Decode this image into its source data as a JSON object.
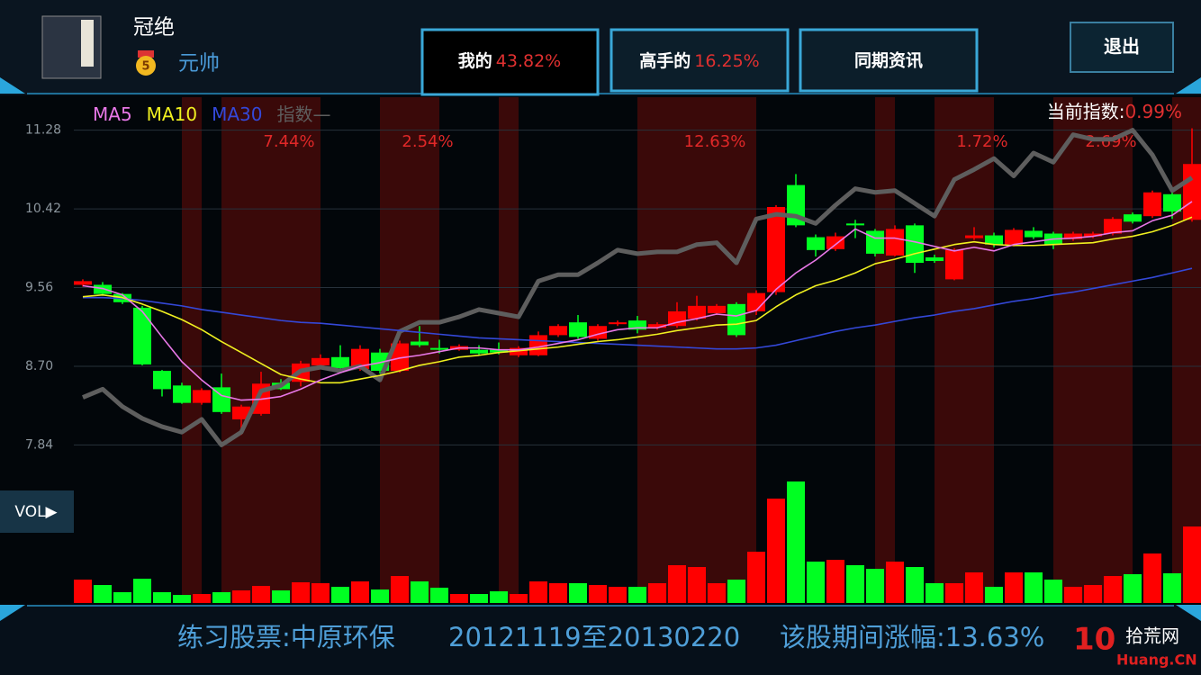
{
  "header": {
    "user_name": "冠绝",
    "rank_badge": "5",
    "rank_title": "元帅",
    "tabs": [
      {
        "label": "我的",
        "value": "43.82%"
      },
      {
        "label": "高手的",
        "value": "16.25%"
      },
      {
        "label": "同期资讯"
      }
    ],
    "exit_button": "退出"
  },
  "chart_data": {
    "type": "candlestick",
    "current_index_label": "当前指数:",
    "current_index_value": "0.99%",
    "ylim": [
      7.5,
      11.64
    ],
    "yticks": [
      11.28,
      10.42,
      9.56,
      {
        "value": 8.7,
        "label": "8.70"
      },
      7.84
    ],
    "grid": true,
    "up_color": "#ff0000",
    "down_color": "#00ff22",
    "open": [
      9.59,
      9.59,
      9.49,
      9.34,
      8.65,
      8.49,
      8.3,
      8.47,
      8.12,
      8.18,
      8.52,
      8.53,
      8.71,
      8.8,
      8.67,
      8.85,
      8.65,
      8.97,
      8.9,
      8.88,
      8.88,
      8.88,
      8.82,
      8.82,
      9.04,
      9.18,
      9.0,
      9.16,
      9.2,
      9.12,
      9.14,
      9.22,
      9.28,
      9.38,
      9.3,
      9.51,
      10.68,
      10.11,
      9.98,
      10.26,
      10.18,
      9.91,
      10.24,
      9.89,
      9.65,
      10.1,
      10.13,
      10.03,
      10.18,
      10.15,
      10.09,
      10.12,
      10.15,
      10.36,
      10.34,
      10.58,
      10.3
    ],
    "high": [
      9.65,
      9.62,
      9.5,
      9.36,
      8.66,
      8.52,
      8.46,
      8.62,
      8.28,
      8.64,
      8.56,
      8.76,
      8.83,
      8.93,
      8.93,
      8.89,
      8.98,
      9.14,
      8.99,
      8.94,
      8.93,
      8.96,
      8.92,
      9.08,
      9.16,
      9.26,
      9.16,
      9.2,
      9.25,
      9.18,
      9.4,
      9.47,
      9.38,
      9.4,
      9.53,
      10.46,
      10.8,
      10.14,
      10.16,
      10.3,
      10.2,
      10.24,
      10.26,
      9.92,
      9.99,
      10.22,
      10.16,
      10.21,
      10.22,
      10.17,
      10.17,
      10.17,
      10.33,
      10.38,
      10.62,
      10.6,
      11.3
    ],
    "low": [
      9.57,
      9.47,
      9.38,
      8.71,
      8.37,
      8.29,
      8.28,
      8.18,
      7.95,
      8.16,
      8.44,
      8.48,
      8.68,
      8.66,
      8.65,
      8.62,
      8.63,
      8.91,
      8.84,
      8.87,
      8.82,
      8.83,
      8.8,
      8.81,
      9.02,
      9.0,
      8.98,
      9.14,
      9.06,
      9.1,
      9.12,
      9.2,
      9.26,
      9.02,
      9.26,
      9.48,
      10.22,
      9.9,
      9.96,
      10.1,
      9.9,
      9.9,
      9.72,
      9.83,
      9.64,
      10.08,
      10.0,
      10.01,
      10.09,
      9.98,
      10.07,
      10.1,
      10.13,
      10.26,
      10.32,
      10.31,
      10.28
    ],
    "close": [
      9.63,
      9.49,
      9.4,
      8.72,
      8.45,
      8.3,
      8.44,
      8.2,
      8.26,
      8.51,
      8.45,
      8.73,
      8.79,
      8.68,
      8.89,
      8.65,
      8.95,
      8.93,
      8.88,
      8.92,
      8.84,
      8.85,
      8.9,
      9.04,
      9.14,
      9.02,
      9.14,
      9.18,
      9.1,
      9.16,
      9.3,
      9.36,
      9.36,
      9.04,
      9.5,
      10.44,
      10.24,
      9.97,
      10.12,
      10.24,
      9.93,
      10.2,
      9.83,
      9.85,
      9.97,
      10.13,
      10.03,
      10.19,
      10.11,
      10.03,
      10.15,
      10.15,
      10.31,
      10.28,
      10.6,
      10.39,
      10.91
    ],
    "series": [
      {
        "name": "MA5",
        "color": "#e878e8",
        "values": [
          9.58,
          9.55,
          9.48,
          9.3,
          9.02,
          8.75,
          8.55,
          8.38,
          8.33,
          8.34,
          8.37,
          8.45,
          8.55,
          8.63,
          8.7,
          8.74,
          8.79,
          8.82,
          8.86,
          8.9,
          8.9,
          8.88,
          8.88,
          8.91,
          8.95,
          8.99,
          9.05,
          9.1,
          9.12,
          9.12,
          9.18,
          9.22,
          9.27,
          9.25,
          9.31,
          9.54,
          9.72,
          9.86,
          10.03,
          10.2,
          10.1,
          10.1,
          10.06,
          10.01,
          9.96,
          10.0,
          9.96,
          10.03,
          10.06,
          10.09,
          10.1,
          10.12,
          10.16,
          10.18,
          10.29,
          10.35,
          10.5
        ]
      },
      {
        "name": "MA10",
        "color": "#f0f020",
        "values": [
          9.46,
          9.48,
          9.45,
          9.38,
          9.3,
          9.21,
          9.1,
          8.97,
          8.85,
          8.73,
          8.61,
          8.56,
          8.52,
          8.52,
          8.56,
          8.6,
          8.65,
          8.71,
          8.75,
          8.8,
          8.82,
          8.85,
          8.87,
          8.89,
          8.91,
          8.94,
          8.97,
          8.99,
          9.02,
          9.05,
          9.09,
          9.12,
          9.15,
          9.16,
          9.2,
          9.35,
          9.48,
          9.58,
          9.64,
          9.72,
          9.82,
          9.87,
          9.93,
          9.98,
          10.03,
          10.06,
          10.03,
          10.02,
          10.02,
          10.03,
          10.04,
          10.05,
          10.09,
          10.12,
          10.17,
          10.24,
          10.33
        ]
      },
      {
        "name": "MA30",
        "color": "#3448d8",
        "values": [
          9.45,
          9.45,
          9.44,
          9.42,
          9.39,
          9.36,
          9.32,
          9.29,
          9.26,
          9.23,
          9.2,
          9.18,
          9.17,
          9.15,
          9.13,
          9.11,
          9.09,
          9.07,
          9.05,
          9.03,
          9.01,
          9.0,
          8.99,
          8.98,
          8.97,
          8.96,
          8.95,
          8.94,
          8.93,
          8.92,
          8.91,
          8.9,
          8.89,
          8.89,
          8.9,
          8.93,
          8.98,
          9.03,
          9.08,
          9.12,
          9.15,
          9.19,
          9.23,
          9.26,
          9.3,
          9.33,
          9.37,
          9.41,
          9.44,
          9.48,
          9.51,
          9.55,
          9.59,
          9.63,
          9.67,
          9.72,
          9.77
        ]
      },
      {
        "name": "指数—",
        "color": "#5e5e5e",
        "values": [
          8.36,
          8.45,
          8.26,
          8.13,
          8.04,
          7.98,
          8.12,
          7.84,
          7.98,
          8.43,
          8.49,
          8.65,
          8.69,
          8.65,
          8.7,
          8.55,
          9.08,
          9.18,
          9.18,
          9.24,
          9.32,
          9.28,
          9.24,
          9.63,
          9.7,
          9.7,
          9.83,
          9.97,
          9.93,
          9.95,
          9.95,
          10.03,
          10.05,
          9.83,
          10.31,
          10.36,
          10.34,
          10.26,
          10.46,
          10.64,
          10.6,
          10.62,
          10.48,
          10.34,
          10.74,
          10.85,
          10.97,
          10.78,
          11.03,
          10.93,
          11.23,
          11.18,
          11.18,
          11.28,
          11.01,
          10.62,
          10.76
        ]
      }
    ],
    "holding_periods": [
      {
        "start": 5,
        "end": 6,
        "label": null
      },
      {
        "start": 7,
        "end": 12,
        "label": "7.44%"
      },
      {
        "start": 15,
        "end": 18,
        "label": "2.54%"
      },
      {
        "start": 21,
        "end": 22,
        "label": null
      },
      {
        "start": 28,
        "end": 34,
        "label": "12.63%"
      },
      {
        "start": 40,
        "end": 41,
        "label": null
      },
      {
        "start": 43,
        "end": 46,
        "label": "1.72%"
      },
      {
        "start": 49,
        "end": 53,
        "label": "2.69%"
      },
      {
        "start": 55,
        "end": 56,
        "label": null
      }
    ],
    "volume_button": "VOL▶",
    "volume": [
      26,
      20,
      12,
      27,
      12,
      9,
      10,
      12,
      14,
      19,
      14,
      23,
      22,
      18,
      24,
      15,
      30,
      24,
      17,
      10,
      10,
      13,
      10,
      24,
      22,
      22,
      20,
      18,
      18,
      22,
      42,
      40,
      22,
      26,
      57,
      116,
      135,
      46,
      48,
      42,
      38,
      46,
      40,
      22,
      22,
      34,
      18,
      34,
      34,
      26,
      18,
      20,
      30,
      32,
      55,
      33,
      85
    ],
    "volume_ylim": [
      0,
      140
    ]
  },
  "footer": {
    "stock": "练习股票:中原环保",
    "period": "20121119至20130220",
    "change": "该股期间涨幅:13.63%"
  },
  "watermark": {
    "logo": "10",
    "site": "拾荒网",
    "domain": "Huang.CN"
  }
}
